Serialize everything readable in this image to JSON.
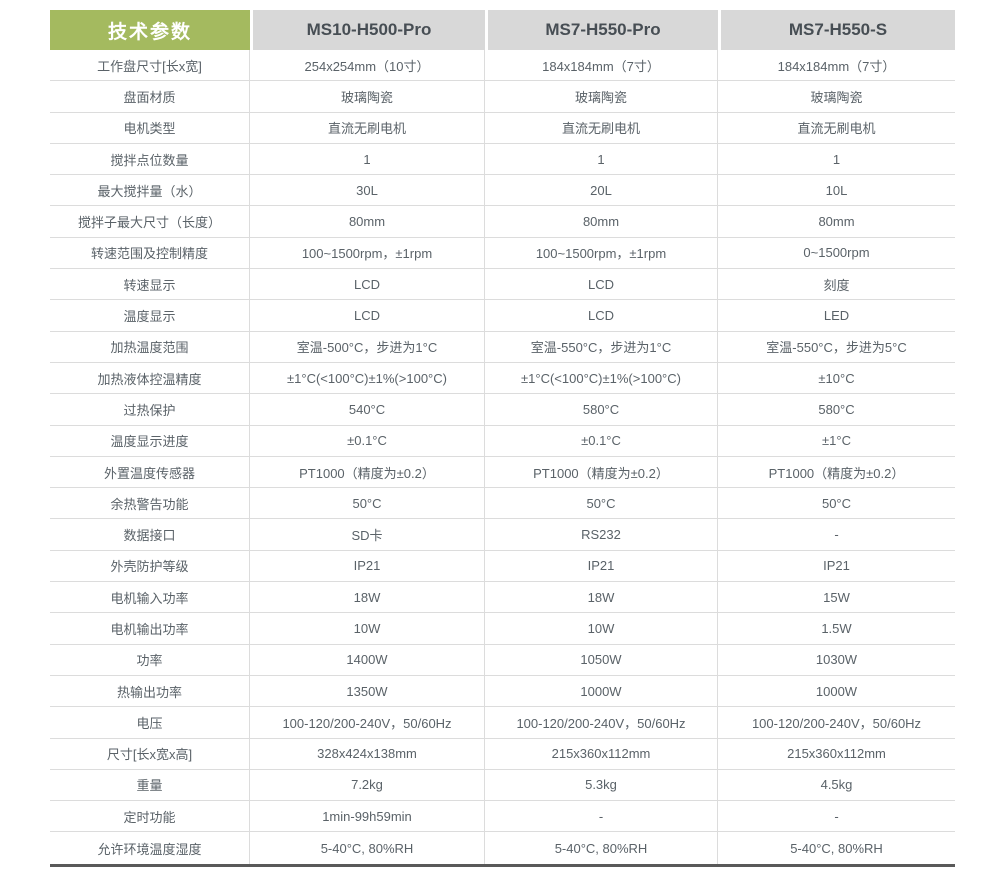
{
  "colors": {
    "header_green": "#a4ba5f",
    "header_gray": "#d8d8d8",
    "header_text": "#474e54",
    "body_text": "#5a6268",
    "grid_line": "#dcdcdc",
    "bottom_line": "#595959"
  },
  "table": {
    "header": {
      "title": "技术参数",
      "models": [
        "MS10-H500-Pro",
        "MS7-H550-Pro",
        "MS7-H550-S"
      ]
    },
    "rows": [
      {
        "label": "工作盘尺寸[长x宽]",
        "values": [
          "254x254mm（10寸）",
          "184x184mm（7寸）",
          "184x184mm（7寸）"
        ]
      },
      {
        "label": "盘面材质",
        "values": [
          "玻璃陶瓷",
          "玻璃陶瓷",
          "玻璃陶瓷"
        ]
      },
      {
        "label": "电机类型",
        "values": [
          "直流无刷电机",
          "直流无刷电机",
          "直流无刷电机"
        ]
      },
      {
        "label": "搅拌点位数量",
        "values": [
          "1",
          "1",
          "1"
        ]
      },
      {
        "label": "最大搅拌量（水）",
        "values": [
          "30L",
          "20L",
          "10L"
        ]
      },
      {
        "label": "搅拌子最大尺寸（长度）",
        "values": [
          "80mm",
          "80mm",
          "80mm"
        ]
      },
      {
        "label": "转速范围及控制精度",
        "values": [
          "100~1500rpm，±1rpm",
          "100~1500rpm，±1rpm",
          "0~1500rpm"
        ]
      },
      {
        "label": "转速显示",
        "values": [
          "LCD",
          "LCD",
          "刻度"
        ]
      },
      {
        "label": "温度显示",
        "values": [
          "LCD",
          "LCD",
          "LED"
        ]
      },
      {
        "label": "加热温度范围",
        "values": [
          "室温-500°C，步进为1°C",
          "室温-550°C，步进为1°C",
          "室温-550°C，步进为5°C"
        ]
      },
      {
        "label": "加热液体控温精度",
        "values": [
          "±1°C(<100°C)±1%(>100°C)",
          "±1°C(<100°C)±1%(>100°C)",
          "±10°C"
        ]
      },
      {
        "label": "过热保护",
        "values": [
          "540°C",
          "580°C",
          "580°C"
        ]
      },
      {
        "label": "温度显示进度",
        "values": [
          "±0.1°C",
          "±0.1°C",
          "±1°C"
        ]
      },
      {
        "label": "外置温度传感器",
        "values": [
          "PT1000（精度为±0.2）",
          "PT1000（精度为±0.2）",
          "PT1000（精度为±0.2）"
        ]
      },
      {
        "label": "余热警告功能",
        "values": [
          "50°C",
          "50°C",
          "50°C"
        ]
      },
      {
        "label": "数据接口",
        "values": [
          "SD卡",
          "RS232",
          "-"
        ]
      },
      {
        "label": "外壳防护等级",
        "values": [
          "IP21",
          "IP21",
          "IP21"
        ]
      },
      {
        "label": "电机输入功率",
        "values": [
          "18W",
          "18W",
          "15W"
        ]
      },
      {
        "label": "电机输出功率",
        "values": [
          "10W",
          "10W",
          "1.5W"
        ]
      },
      {
        "label": "功率",
        "values": [
          "1400W",
          "1050W",
          "1030W"
        ]
      },
      {
        "label": "热输出功率",
        "values": [
          "1350W",
          "1000W",
          "1000W"
        ]
      },
      {
        "label": "电压",
        "values": [
          "100-120/200-240V，50/60Hz",
          "100-120/200-240V，50/60Hz",
          "100-120/200-240V，50/60Hz"
        ]
      },
      {
        "label": "尺寸[长x宽x高]",
        "values": [
          "328x424x138mm",
          "215x360x112mm",
          "215x360x112mm"
        ]
      },
      {
        "label": "重量",
        "values": [
          "7.2kg",
          "5.3kg",
          "4.5kg"
        ]
      },
      {
        "label": "定时功能",
        "values": [
          "1min-99h59min",
          "-",
          "-"
        ]
      },
      {
        "label": "允许环境温度湿度",
        "values": [
          "5-40°C, 80%RH",
          "5-40°C, 80%RH",
          "5-40°C, 80%RH"
        ]
      }
    ]
  }
}
